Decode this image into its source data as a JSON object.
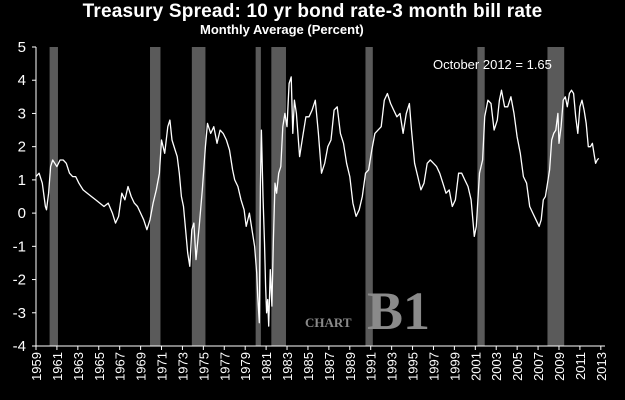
{
  "chart_data": {
    "type": "line",
    "title": "Treasury Spread: 10 yr bond rate-3 month bill rate",
    "subtitle": "Monthly Average (Percent)",
    "annotation": "October 2012 = 1.65",
    "watermark": {
      "small": "CHART",
      "large": "B1"
    },
    "ylim": [
      -4,
      5
    ],
    "yticks": [
      -4,
      -3,
      -2,
      -1,
      0,
      1,
      2,
      3,
      4,
      5
    ],
    "xlim": [
      1959,
      2013.4
    ],
    "xticks": [
      "1959",
      "1961",
      "1963",
      "1965",
      "1967",
      "1969",
      "1971",
      "1973",
      "1975",
      "1977",
      "1979",
      "1981",
      "1983",
      "1985",
      "1987",
      "1989",
      "1991",
      "1993",
      "1995",
      "1997",
      "1999",
      "2001",
      "2003",
      "2005",
      "2007",
      "2009",
      "2011",
      "2013"
    ],
    "grid": false,
    "colors": {
      "background": "#000000",
      "line": "#ffffff",
      "recession": "#5a5a5a",
      "axis": "#ffffff"
    },
    "recessions": [
      [
        1960.3,
        1961.1
      ],
      [
        1969.9,
        1970.9
      ],
      [
        1973.9,
        1975.2
      ],
      [
        1980.0,
        1980.5
      ],
      [
        1981.5,
        1982.9
      ],
      [
        1990.5,
        1991.2
      ],
      [
        2001.2,
        2001.9
      ],
      [
        2007.9,
        2009.5
      ]
    ],
    "series": [
      {
        "values": [
          [
            1959.0,
            1.1
          ],
          [
            1959.3,
            1.2
          ],
          [
            1959.6,
            0.9
          ],
          [
            1959.9,
            0.2
          ],
          [
            1960.0,
            0.1
          ],
          [
            1960.2,
            0.6
          ],
          [
            1960.4,
            1.4
          ],
          [
            1960.6,
            1.6
          ],
          [
            1960.8,
            1.5
          ],
          [
            1961.0,
            1.4
          ],
          [
            1961.3,
            1.6
          ],
          [
            1961.6,
            1.6
          ],
          [
            1961.9,
            1.5
          ],
          [
            1962.2,
            1.2
          ],
          [
            1962.5,
            1.1
          ],
          [
            1962.8,
            1.1
          ],
          [
            1963.1,
            0.9
          ],
          [
            1963.5,
            0.7
          ],
          [
            1963.9,
            0.6
          ],
          [
            1964.3,
            0.5
          ],
          [
            1964.7,
            0.4
          ],
          [
            1965.1,
            0.3
          ],
          [
            1965.5,
            0.2
          ],
          [
            1965.9,
            0.3
          ],
          [
            1966.3,
            0.0
          ],
          [
            1966.6,
            -0.3
          ],
          [
            1966.9,
            -0.1
          ],
          [
            1967.2,
            0.6
          ],
          [
            1967.5,
            0.4
          ],
          [
            1967.8,
            0.8
          ],
          [
            1968.1,
            0.5
          ],
          [
            1968.4,
            0.3
          ],
          [
            1968.7,
            0.2
          ],
          [
            1969.0,
            0.0
          ],
          [
            1969.3,
            -0.2
          ],
          [
            1969.6,
            -0.5
          ],
          [
            1969.9,
            -0.2
          ],
          [
            1970.2,
            0.3
          ],
          [
            1970.5,
            0.7
          ],
          [
            1970.8,
            1.2
          ],
          [
            1971.0,
            2.2
          ],
          [
            1971.3,
            1.8
          ],
          [
            1971.6,
            2.6
          ],
          [
            1971.8,
            2.8
          ],
          [
            1972.0,
            2.2
          ],
          [
            1972.3,
            1.9
          ],
          [
            1972.5,
            1.7
          ],
          [
            1972.7,
            1.2
          ],
          [
            1972.9,
            0.5
          ],
          [
            1973.1,
            0.2
          ],
          [
            1973.3,
            -0.5
          ],
          [
            1973.5,
            -1.2
          ],
          [
            1973.7,
            -1.6
          ],
          [
            1973.9,
            -0.5
          ],
          [
            1974.1,
            -0.3
          ],
          [
            1974.3,
            -1.4
          ],
          [
            1974.6,
            -0.4
          ],
          [
            1974.9,
            0.7
          ],
          [
            1975.2,
            2.0
          ],
          [
            1975.4,
            2.7
          ],
          [
            1975.7,
            2.4
          ],
          [
            1976.0,
            2.6
          ],
          [
            1976.3,
            2.1
          ],
          [
            1976.6,
            2.5
          ],
          [
            1976.9,
            2.4
          ],
          [
            1977.2,
            2.2
          ],
          [
            1977.5,
            1.9
          ],
          [
            1977.8,
            1.3
          ],
          [
            1978.0,
            1.0
          ],
          [
            1978.3,
            0.8
          ],
          [
            1978.6,
            0.4
          ],
          [
            1978.9,
            0.1
          ],
          [
            1979.1,
            -0.4
          ],
          [
            1979.4,
            0.0
          ],
          [
            1979.7,
            -0.6
          ],
          [
            1979.9,
            -1.0
          ],
          [
            1980.1,
            -1.8
          ],
          [
            1980.2,
            -2.5
          ],
          [
            1980.35,
            -3.3
          ],
          [
            1980.45,
            0.8
          ],
          [
            1980.55,
            2.5
          ],
          [
            1980.7,
            0.5
          ],
          [
            1980.85,
            -0.9
          ],
          [
            1980.95,
            -2.2
          ],
          [
            1981.05,
            -3.0
          ],
          [
            1981.15,
            -2.6
          ],
          [
            1981.25,
            -3.4
          ],
          [
            1981.4,
            -1.7
          ],
          [
            1981.55,
            -2.8
          ],
          [
            1981.7,
            -0.8
          ],
          [
            1981.85,
            0.9
          ],
          [
            1982.0,
            0.6
          ],
          [
            1982.2,
            1.2
          ],
          [
            1982.4,
            1.4
          ],
          [
            1982.6,
            2.6
          ],
          [
            1982.8,
            3.0
          ],
          [
            1983.0,
            2.6
          ],
          [
            1983.2,
            3.9
          ],
          [
            1983.4,
            4.1
          ],
          [
            1983.55,
            2.4
          ],
          [
            1983.7,
            3.4
          ],
          [
            1983.9,
            3.0
          ],
          [
            1984.2,
            1.7
          ],
          [
            1984.5,
            2.3
          ],
          [
            1984.8,
            2.9
          ],
          [
            1985.1,
            2.9
          ],
          [
            1985.4,
            3.1
          ],
          [
            1985.7,
            3.4
          ],
          [
            1986.0,
            2.4
          ],
          [
            1986.3,
            1.2
          ],
          [
            1986.6,
            1.5
          ],
          [
            1986.9,
            2.0
          ],
          [
            1987.2,
            2.2
          ],
          [
            1987.5,
            3.1
          ],
          [
            1987.8,
            3.2
          ],
          [
            1988.1,
            2.4
          ],
          [
            1988.4,
            2.1
          ],
          [
            1988.7,
            1.5
          ],
          [
            1989.0,
            1.1
          ],
          [
            1989.3,
            0.3
          ],
          [
            1989.6,
            -0.1
          ],
          [
            1989.9,
            0.1
          ],
          [
            1990.2,
            0.5
          ],
          [
            1990.5,
            1.2
          ],
          [
            1990.8,
            1.3
          ],
          [
            1991.1,
            1.9
          ],
          [
            1991.4,
            2.4
          ],
          [
            1991.7,
            2.5
          ],
          [
            1992.0,
            2.6
          ],
          [
            1992.3,
            3.4
          ],
          [
            1992.6,
            3.6
          ],
          [
            1992.9,
            3.3
          ],
          [
            1993.2,
            3.1
          ],
          [
            1993.5,
            2.9
          ],
          [
            1993.8,
            3.0
          ],
          [
            1994.1,
            2.4
          ],
          [
            1994.4,
            3.0
          ],
          [
            1994.7,
            3.3
          ],
          [
            1994.9,
            2.5
          ],
          [
            1995.2,
            1.5
          ],
          [
            1995.5,
            1.1
          ],
          [
            1995.8,
            0.7
          ],
          [
            1996.1,
            0.9
          ],
          [
            1996.4,
            1.5
          ],
          [
            1996.7,
            1.6
          ],
          [
            1997.0,
            1.5
          ],
          [
            1997.3,
            1.4
          ],
          [
            1997.6,
            1.2
          ],
          [
            1997.9,
            0.9
          ],
          [
            1998.2,
            0.6
          ],
          [
            1998.5,
            0.7
          ],
          [
            1998.8,
            0.2
          ],
          [
            1999.1,
            0.4
          ],
          [
            1999.4,
            1.2
          ],
          [
            1999.7,
            1.2
          ],
          [
            2000.0,
            1.0
          ],
          [
            2000.3,
            0.8
          ],
          [
            2000.6,
            0.4
          ],
          [
            2000.9,
            -0.7
          ],
          [
            2001.1,
            -0.4
          ],
          [
            2001.4,
            1.2
          ],
          [
            2001.7,
            1.6
          ],
          [
            2001.9,
            2.9
          ],
          [
            2002.2,
            3.4
          ],
          [
            2002.5,
            3.3
          ],
          [
            2002.8,
            2.5
          ],
          [
            2003.1,
            2.8
          ],
          [
            2003.3,
            3.4
          ],
          [
            2003.5,
            3.7
          ],
          [
            2003.8,
            3.2
          ],
          [
            2004.1,
            3.2
          ],
          [
            2004.4,
            3.5
          ],
          [
            2004.7,
            3.0
          ],
          [
            2005.0,
            2.3
          ],
          [
            2005.3,
            1.8
          ],
          [
            2005.6,
            1.1
          ],
          [
            2005.9,
            0.9
          ],
          [
            2006.2,
            0.2
          ],
          [
            2006.5,
            0.0
          ],
          [
            2006.8,
            -0.2
          ],
          [
            2007.1,
            -0.4
          ],
          [
            2007.3,
            -0.2
          ],
          [
            2007.5,
            0.4
          ],
          [
            2007.7,
            0.5
          ],
          [
            2007.9,
            0.9
          ],
          [
            2008.1,
            1.3
          ],
          [
            2008.3,
            2.2
          ],
          [
            2008.5,
            2.4
          ],
          [
            2008.7,
            2.5
          ],
          [
            2008.9,
            3.0
          ],
          [
            2009.0,
            2.1
          ],
          [
            2009.2,
            2.6
          ],
          [
            2009.4,
            3.4
          ],
          [
            2009.6,
            3.5
          ],
          [
            2009.8,
            3.2
          ],
          [
            2010.0,
            3.6
          ],
          [
            2010.2,
            3.7
          ],
          [
            2010.4,
            3.6
          ],
          [
            2010.6,
            2.9
          ],
          [
            2010.8,
            2.4
          ],
          [
            2011.0,
            3.2
          ],
          [
            2011.2,
            3.4
          ],
          [
            2011.4,
            3.1
          ],
          [
            2011.6,
            2.7
          ],
          [
            2011.8,
            2.0
          ],
          [
            2012.0,
            2.0
          ],
          [
            2012.2,
            2.1
          ],
          [
            2012.4,
            1.7
          ],
          [
            2012.5,
            1.5
          ],
          [
            2012.65,
            1.6
          ],
          [
            2012.8,
            1.65
          ]
        ]
      }
    ]
  }
}
